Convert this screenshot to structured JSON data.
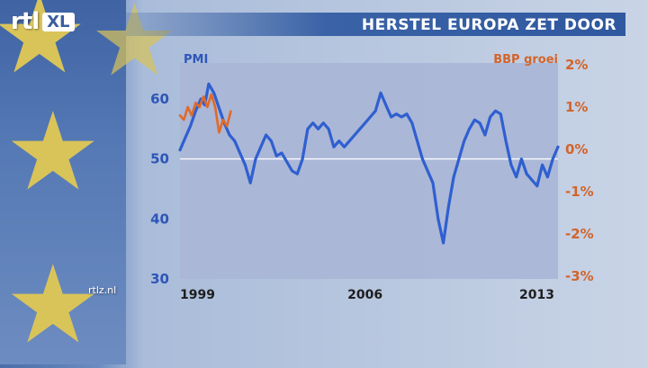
{
  "header": {
    "title": "HERSTEL EUROPA ZET DOOR"
  },
  "logo": {
    "rtl": "rtl",
    "xl": "XL"
  },
  "site": "rtlz.nl",
  "colors": {
    "pmi": "#2f5fd0",
    "bbp": "#e06a2a",
    "panel": "#aab6d6",
    "header": "#2f58a0"
  },
  "chart_data": {
    "type": "line",
    "title": "HERSTEL EUROPA ZET DOOR",
    "ylabel_left": "PMI",
    "ylabel_right": "BBP groei",
    "y_left_ticks": [
      "60",
      "50",
      "40",
      "30"
    ],
    "y_left_range": [
      30,
      66
    ],
    "y_right_ticks": [
      "2%",
      "1%",
      "0%",
      "-1%",
      "-2%",
      "-3%"
    ],
    "y_right_range": [
      -3,
      2
    ],
    "x_ticks": [
      "1999",
      "2006",
      "2013"
    ],
    "x_range": [
      1998.9,
      2013.4
    ],
    "reference_line_pmi": 50,
    "grid": false,
    "series": [
      {
        "name": "PMI",
        "axis": "left",
        "points": [
          [
            1998.9,
            51.5
          ],
          [
            1999.1,
            53.5
          ],
          [
            1999.3,
            55.5
          ],
          [
            1999.5,
            58
          ],
          [
            1999.7,
            60
          ],
          [
            1999.85,
            59
          ],
          [
            2000.0,
            62.5
          ],
          [
            2000.2,
            61
          ],
          [
            2000.4,
            58.5
          ],
          [
            2000.6,
            56
          ],
          [
            2000.8,
            54
          ],
          [
            2001.0,
            53
          ],
          [
            2001.2,
            51
          ],
          [
            2001.4,
            49
          ],
          [
            2001.6,
            46
          ],
          [
            2001.8,
            50
          ],
          [
            2002.0,
            52
          ],
          [
            2002.2,
            54
          ],
          [
            2002.4,
            53
          ],
          [
            2002.6,
            50.5
          ],
          [
            2002.8,
            51
          ],
          [
            2003.0,
            49.5
          ],
          [
            2003.2,
            48
          ],
          [
            2003.4,
            47.5
          ],
          [
            2003.6,
            50
          ],
          [
            2003.8,
            55
          ],
          [
            2004.0,
            56
          ],
          [
            2004.2,
            55
          ],
          [
            2004.4,
            56
          ],
          [
            2004.6,
            55
          ],
          [
            2004.8,
            52
          ],
          [
            2005.0,
            53
          ],
          [
            2005.2,
            52
          ],
          [
            2005.4,
            53
          ],
          [
            2005.6,
            54
          ],
          [
            2005.8,
            55
          ],
          [
            2006.0,
            56
          ],
          [
            2006.2,
            57
          ],
          [
            2006.4,
            58
          ],
          [
            2006.6,
            61
          ],
          [
            2006.8,
            59
          ],
          [
            2007.0,
            57
          ],
          [
            2007.2,
            57.5
          ],
          [
            2007.4,
            57
          ],
          [
            2007.6,
            57.5
          ],
          [
            2007.8,
            56
          ],
          [
            2008.0,
            53
          ],
          [
            2008.2,
            50
          ],
          [
            2008.4,
            48
          ],
          [
            2008.6,
            46
          ],
          [
            2008.8,
            40
          ],
          [
            2009.0,
            36
          ],
          [
            2009.2,
            42
          ],
          [
            2009.4,
            47
          ],
          [
            2009.6,
            50
          ],
          [
            2009.8,
            53
          ],
          [
            2010.0,
            55
          ],
          [
            2010.2,
            56.5
          ],
          [
            2010.4,
            56
          ],
          [
            2010.6,
            54
          ],
          [
            2010.8,
            57
          ],
          [
            2011.0,
            58
          ],
          [
            2011.2,
            57.5
          ],
          [
            2011.4,
            53
          ],
          [
            2011.6,
            49
          ],
          [
            2011.8,
            47
          ],
          [
            2012.0,
            50
          ],
          [
            2012.2,
            47.5
          ],
          [
            2012.4,
            46.5
          ],
          [
            2012.6,
            45.5
          ],
          [
            2012.8,
            49
          ],
          [
            2013.0,
            47
          ],
          [
            2013.2,
            50
          ],
          [
            2013.4,
            52
          ]
        ]
      },
      {
        "name": "BBP groei",
        "axis": "right",
        "points": [
          [
            1998.9,
            0.8
          ],
          [
            1999.05,
            0.7
          ],
          [
            1999.2,
            1.0
          ],
          [
            1999.35,
            0.8
          ],
          [
            1999.5,
            1.1
          ],
          [
            1999.65,
            1.0
          ],
          [
            1999.8,
            1.25
          ],
          [
            1999.95,
            1.0
          ],
          [
            2000.1,
            1.3
          ],
          [
            2000.25,
            1.0
          ],
          [
            2000.4,
            0.4
          ],
          [
            2000.55,
            0.7
          ],
          [
            2000.7,
            0.55
          ],
          [
            2000.85,
            0.9
          ]
        ]
      }
    ]
  }
}
